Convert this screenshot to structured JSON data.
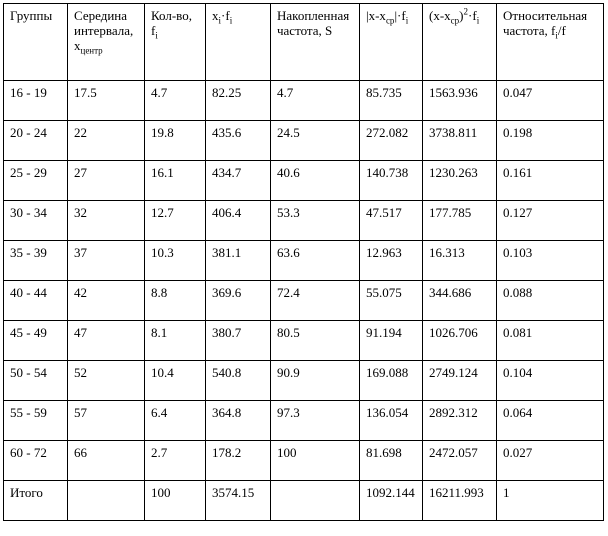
{
  "table": {
    "headers": {
      "groups": "Группы",
      "mid_line1": "Середина",
      "mid_line2": "интервала,",
      "mid_var": "x",
      "mid_sub": "центр",
      "count_line1": "Кол-во,",
      "count_var": "f",
      "count_sub": "i",
      "xf_x": "x",
      "xf_xsub": "i",
      "xf_dot": "·f",
      "xf_fsub": "i",
      "cum_line1": "Накопленная",
      "cum_line2": "частота, S",
      "absdev_pre": "|x-x",
      "absdev_sub": "ср",
      "absdev_post": "|·f",
      "absdev_fsub": "i",
      "sqdev_pre": "(x-x",
      "sqdev_sub": "ср",
      "sqdev_mid": ")",
      "sqdev_sup": "2",
      "sqdev_post": "·f",
      "sqdev_fsub": "i",
      "rel_line1": "Относительная",
      "rel_line2a": "частота, f",
      "rel_sub": "i",
      "rel_line2b": "/f"
    },
    "rows": [
      [
        "16 - 19",
        "17.5",
        "4.7",
        "82.25",
        "4.7",
        "85.735",
        "1563.936",
        "0.047"
      ],
      [
        "20 - 24",
        "22",
        "19.8",
        "435.6",
        "24.5",
        "272.082",
        "3738.811",
        "0.198"
      ],
      [
        "25 - 29",
        "27",
        "16.1",
        "434.7",
        "40.6",
        "140.738",
        "1230.263",
        "0.161"
      ],
      [
        "30 - 34",
        "32",
        "12.7",
        "406.4",
        "53.3",
        "47.517",
        "177.785",
        "0.127"
      ],
      [
        "35 - 39",
        "37",
        "10.3",
        "381.1",
        "63.6",
        "12.963",
        "16.313",
        "0.103"
      ],
      [
        "40 - 44",
        "42",
        "8.8",
        "369.6",
        "72.4",
        "55.075",
        "344.686",
        "0.088"
      ],
      [
        "45 - 49",
        "47",
        "8.1",
        "380.7",
        "80.5",
        "91.194",
        "1026.706",
        "0.081"
      ],
      [
        "50 - 54",
        "52",
        "10.4",
        "540.8",
        "90.9",
        "169.088",
        "2749.124",
        "0.104"
      ],
      [
        "55 - 59",
        "57",
        "6.4",
        "364.8",
        "97.3",
        "136.054",
        "2892.312",
        "0.064"
      ],
      [
        "60 - 72",
        "66",
        "2.7",
        "178.2",
        "100",
        "81.698",
        "2472.057",
        "0.027"
      ]
    ],
    "total": [
      "Итого",
      "",
      "100",
      "3574.15",
      "",
      "1092.144",
      "16211.993",
      "1"
    ]
  }
}
